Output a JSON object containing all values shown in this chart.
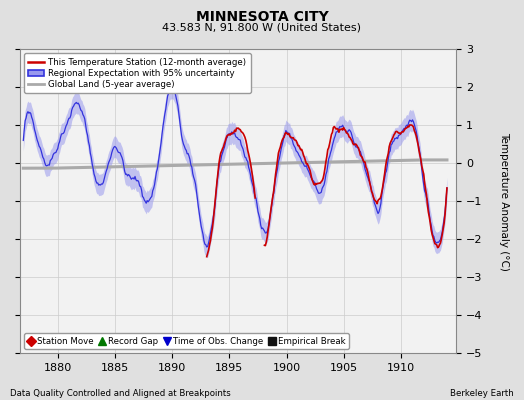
{
  "title": "MINNESOTA CITY",
  "subtitle": "43.583 N, 91.800 W (United States)",
  "xlabel_years": [
    1880,
    1885,
    1890,
    1895,
    1900,
    1905,
    1910
  ],
  "year_start": 1877,
  "year_end": 1914,
  "ylim": [
    -5,
    3
  ],
  "yticks": [
    -5,
    -4,
    -3,
    -2,
    -1,
    0,
    1,
    2,
    3
  ],
  "ylabel": "Temperature Anomaly (°C)",
  "footer_left": "Data Quality Controlled and Aligned at Breakpoints",
  "footer_right": "Berkeley Earth",
  "legend_items": [
    "This Temperature Station (12-month average)",
    "Regional Expectation with 95% uncertainty",
    "Global Land (5-year average)"
  ],
  "legend_markers": [
    {
      "label": "Station Move",
      "color": "#cc0000",
      "marker": "D"
    },
    {
      "label": "Record Gap",
      "color": "#007700",
      "marker": "^"
    },
    {
      "label": "Time of Obs. Change",
      "color": "#0000cc",
      "marker": "v"
    },
    {
      "label": "Empirical Break",
      "color": "#111111",
      "marker": "s"
    }
  ],
  "bg_color": "#e0e0e0",
  "plot_bg_color": "#f2f2f2",
  "regional_color": "#3333dd",
  "regional_fill_color": "#9999ee",
  "station_color": "#cc0000",
  "global_color": "#aaaaaa",
  "grid_color": "#cccccc"
}
